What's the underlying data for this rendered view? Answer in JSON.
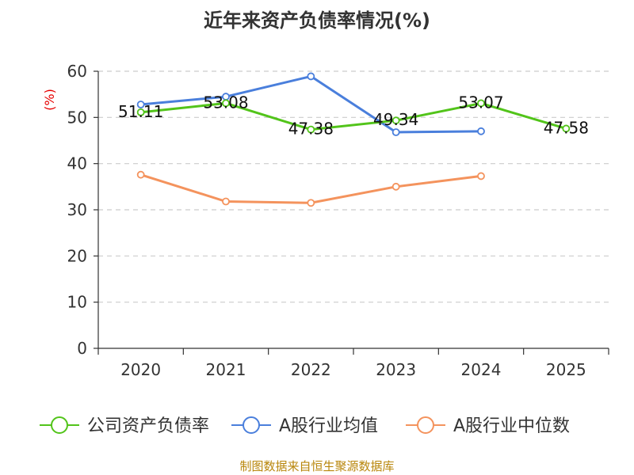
{
  "chart_data": {
    "type": "line",
    "title": "近年来资产负债率情况(%)",
    "ylabel": "(%)",
    "xlabel": "",
    "categories": [
      "2020",
      "2021",
      "2022",
      "2023",
      "2024",
      "2025"
    ],
    "ylim": [
      0,
      60
    ],
    "yticks": [
      0,
      10,
      20,
      30,
      40,
      50,
      60
    ],
    "grid": true,
    "legend_position": "bottom",
    "series": [
      {
        "name": "公司资产负债率",
        "color": "#52c41a",
        "values": [
          51.11,
          53.08,
          47.38,
          49.34,
          53.07,
          47.58
        ],
        "labels": [
          "51.11",
          "53.08",
          "47.38",
          "49.34",
          "53.07",
          "47.58"
        ]
      },
      {
        "name": "A股行业均值",
        "color": "#4a7fdc",
        "values": [
          52.8,
          54.5,
          58.9,
          46.8,
          47.0,
          null
        ]
      },
      {
        "name": "A股行业中位数",
        "color": "#f4935d",
        "values": [
          37.6,
          31.8,
          31.5,
          35.0,
          37.3,
          null
        ]
      }
    ]
  },
  "source": "制图数据来自恒生聚源数据库"
}
